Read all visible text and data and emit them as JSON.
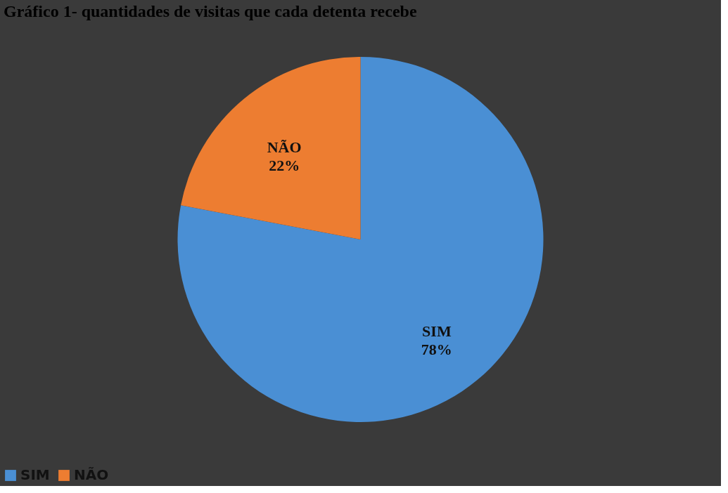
{
  "chart_data": {
    "type": "pie",
    "title": "Gráfico 1- quantidades de visitas que cada detenta recebe",
    "categories": [
      "SIM",
      "NÃO"
    ],
    "values": [
      78,
      22
    ],
    "colors": [
      "#4a8fd4",
      "#ed7d31"
    ],
    "value_labels": [
      "78%",
      "22%"
    ],
    "legend": "bottom"
  }
}
